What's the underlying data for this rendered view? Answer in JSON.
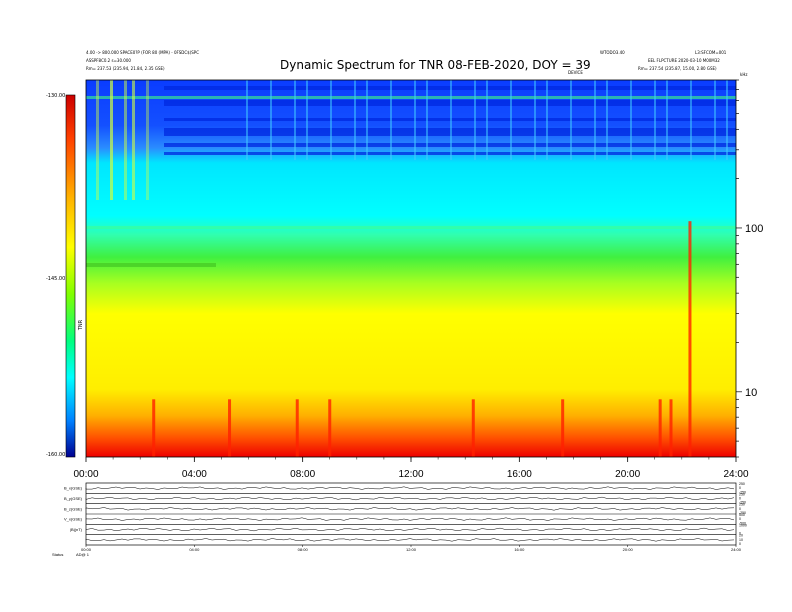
{
  "header": {
    "title": "Dynamic Spectrum for TNR 08-FEB-2020, DOY = 39",
    "left_line1": "4.00 -> 800.000 SPACE0?P (FOR 80 (MPA) - 0FSDC$)SPC",
    "left_line2": "ASSPF8C0.2 s=30.000",
    "left_line3": "Rm= 237.53 (235.94, 21.84, 2.35 GSE)",
    "right_line1": "WTODO3.40",
    "right_line2": "L3:SFCOM=001",
    "right_line3": "EEL FLPCTURE 2020-03-10 M00M32",
    "right_line4": "Rm= 237.54 (235.87, 15.00, 2.80 GSE)",
    "mid_right": "DEVICE",
    "corner_r": "kHz"
  },
  "colorbar": {
    "ticks": [
      "-130.00",
      "-145.00",
      "-160.00"
    ],
    "label": "TNR"
  },
  "chart_data": {
    "type": "heatmap",
    "title": "Dynamic Spectrum for TNR 08-FEB-2020, DOY = 39",
    "x_ticks": [
      "00:00",
      "04:00",
      "08:00",
      "12:00",
      "16:00",
      "20:00",
      "24:00"
    ],
    "x_range_hours": [
      0,
      24
    ],
    "y_scale": "log",
    "y_unit": "kHz",
    "y_ticks": [
      100,
      10
    ],
    "y_range_khz": [
      4,
      800
    ],
    "color_range": [
      -160,
      -130
    ],
    "color_ticks": [
      -130,
      -145,
      -160
    ],
    "colormap": [
      "#b00000",
      "#ff0000",
      "#ff8000",
      "#ffff00",
      "#00ff00",
      "#00ffff",
      "#0060ff",
      "#00008b"
    ],
    "dominant_bands": [
      {
        "from_khz": 4,
        "to_khz": 6,
        "color": "red"
      },
      {
        "from_khz": 6,
        "to_khz": 35,
        "color": "yellow"
      },
      {
        "from_khz": 35,
        "to_khz": 65,
        "color": "green"
      },
      {
        "from_khz": 65,
        "to_khz": 330,
        "color": "cyan"
      },
      {
        "from_khz": 330,
        "to_khz": 800,
        "color": "blue"
      }
    ],
    "bursts_hours": [
      2.5,
      5.3,
      7.8,
      9.0,
      14.3,
      17.6,
      21.2,
      21.6,
      22.3
    ]
  },
  "aux_panels": {
    "labels": [
      "B_x(GSE)",
      "B_y(GSE)",
      "B_z(GSE)",
      "V_x(GSE)",
      "|B|(nT)"
    ],
    "right_ticks": [
      [
        "250",
        "0",
        "-250"
      ],
      [
        "250",
        "0",
        "-250"
      ],
      [
        "250",
        "0",
        "-250"
      ],
      [
        "500",
        "0",
        "-500"
      ],
      [
        "1000",
        "0"
      ],
      [
        "20",
        "10",
        "0"
      ]
    ],
    "x_ticks": [
      "00:00",
      "04:00",
      "08:00",
      "12:00",
      "16:00",
      "20:00",
      "24:00"
    ],
    "footer": [
      "Status",
      "AD@ 1"
    ]
  }
}
